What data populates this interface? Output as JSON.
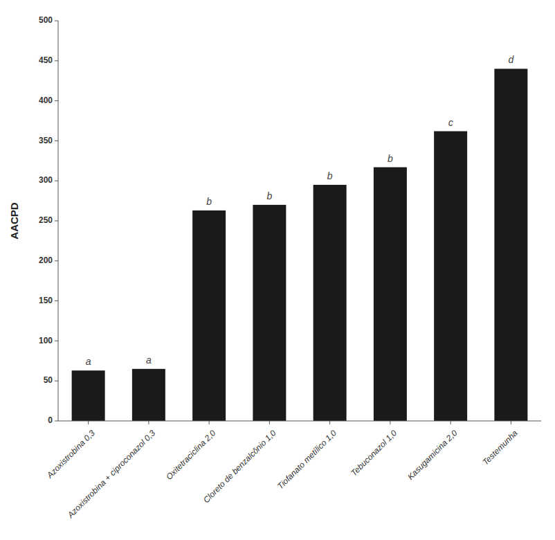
{
  "chart_data": {
    "type": "bar",
    "categories": [
      "Azoxistrobina 0,3",
      "Azoxistrobina + ciproconazol 0,3",
      "Oxitetraciclina 2,0",
      "Cloreto de benzalcônio 1,0",
      "Tiofanato metílico 1,0",
      "Tebuconazol 1,0",
      "Kasugamicina 2,0",
      "Testemunha"
    ],
    "values": [
      63,
      65,
      263,
      270,
      295,
      317,
      362,
      440
    ],
    "annotations": [
      "a",
      "a",
      "b",
      "b",
      "b",
      "b",
      "c",
      "d"
    ],
    "color": "#1a1a1a",
    "ylabel": "AACPD",
    "ylim": [
      0,
      500
    ],
    "yticks": [
      0,
      50,
      100,
      150,
      200,
      250,
      300,
      350,
      400,
      450,
      500
    ],
    "grid": false
  }
}
